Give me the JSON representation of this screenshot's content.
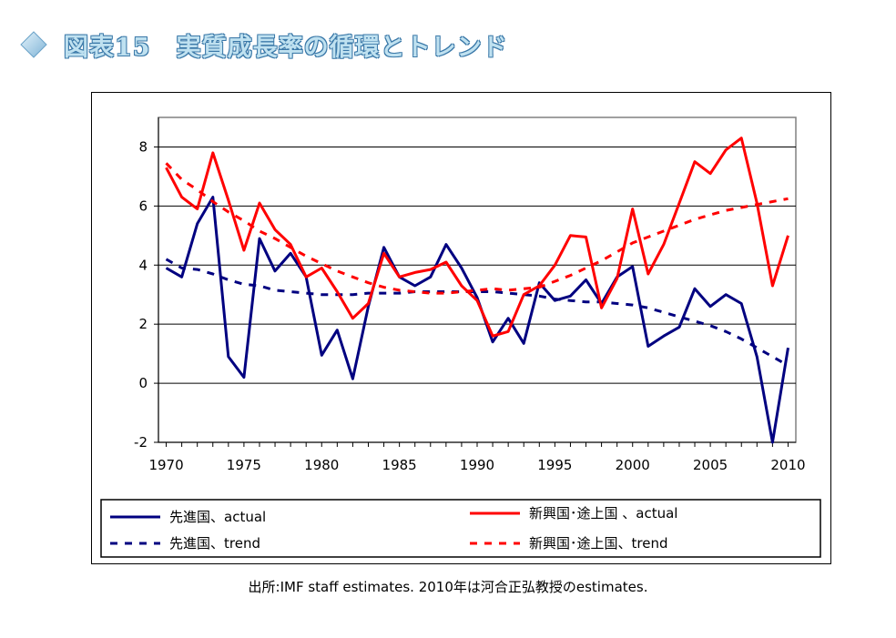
{
  "header": {
    "title": "図表15　実質成長率の循環とトレンド",
    "icon": "diamond-icon",
    "title_color": "#bfe1f0",
    "title_outline_color": "#3a78a8"
  },
  "source_note": "出所:IMF staff estimates. 2010年は河合正弘教授のestimates.",
  "chart_data": {
    "type": "line",
    "xlim": [
      1969.5,
      2010.5
    ],
    "ylim": [
      -2,
      9
    ],
    "yticks": [
      -2,
      0,
      2,
      4,
      6,
      8
    ],
    "ytick_labels": [
      "-2",
      "0",
      "2",
      "4",
      "6",
      "8"
    ],
    "xticks": [
      1970,
      1975,
      1980,
      1985,
      1990,
      1995,
      2000,
      2005,
      2010
    ],
    "xtick_labels": [
      "1970",
      "1975",
      "1980",
      "1985",
      "1990",
      "1995",
      "2000",
      "2005",
      "2010"
    ],
    "grid": "horizontal",
    "gridline_color": "#000000",
    "plot_background": "#ffffff",
    "legend_position": "bottom",
    "years": [
      1970,
      1971,
      1972,
      1973,
      1974,
      1975,
      1976,
      1977,
      1978,
      1979,
      1980,
      1981,
      1982,
      1983,
      1984,
      1985,
      1986,
      1987,
      1988,
      1989,
      1990,
      1991,
      1992,
      1993,
      1994,
      1995,
      1996,
      1997,
      1998,
      1999,
      2000,
      2001,
      2002,
      2003,
      2004,
      2005,
      2006,
      2007,
      2008,
      2009,
      2010
    ],
    "series": [
      {
        "name": "先進国、actual",
        "color": "#000080",
        "style": "solid",
        "values": [
          3.9,
          3.6,
          5.4,
          6.3,
          0.9,
          0.2,
          4.9,
          3.8,
          4.4,
          3.6,
          0.95,
          1.8,
          0.15,
          2.6,
          4.6,
          3.6,
          3.3,
          3.6,
          4.7,
          3.9,
          2.9,
          1.4,
          2.2,
          1.35,
          3.4,
          2.8,
          2.95,
          3.5,
          2.7,
          3.6,
          3.95,
          1.25,
          1.6,
          1.9,
          3.2,
          2.6,
          3.0,
          2.7,
          0.9,
          -2.0,
          1.2
        ]
      },
      {
        "name": "先進国、trend",
        "color": "#000080",
        "style": "dashed",
        "values": [
          4.2,
          3.9,
          3.85,
          3.7,
          3.5,
          3.35,
          3.3,
          3.15,
          3.1,
          3.05,
          3.0,
          3.0,
          3.0,
          3.05,
          3.05,
          3.05,
          3.1,
          3.1,
          3.1,
          3.1,
          3.1,
          3.1,
          3.05,
          3.0,
          2.95,
          2.85,
          2.8,
          2.75,
          2.75,
          2.7,
          2.65,
          2.55,
          2.4,
          2.25,
          2.1,
          1.95,
          1.75,
          1.5,
          1.2,
          0.9,
          0.6
        ]
      },
      {
        "name": "新興国･途上国 、actual",
        "color": "#ff0000",
        "style": "solid",
        "values": [
          7.3,
          6.3,
          5.9,
          7.8,
          6.2,
          4.5,
          6.1,
          5.2,
          4.7,
          3.6,
          3.9,
          3.1,
          2.2,
          2.7,
          4.4,
          3.6,
          3.75,
          3.85,
          4.1,
          3.3,
          2.8,
          1.6,
          1.75,
          3.0,
          3.3,
          4.0,
          5.0,
          4.95,
          2.55,
          3.55,
          5.9,
          3.7,
          4.7,
          6.1,
          7.5,
          7.1,
          7.9,
          8.3,
          6.1,
          3.3,
          5.0
        ]
      },
      {
        "name": "新興国･途上国、trend",
        "color": "#ff0000",
        "style": "dashed",
        "values": [
          7.45,
          6.9,
          6.55,
          6.15,
          5.8,
          5.5,
          5.15,
          4.9,
          4.6,
          4.3,
          4.05,
          3.8,
          3.6,
          3.4,
          3.25,
          3.15,
          3.1,
          3.05,
          3.05,
          3.1,
          3.15,
          3.2,
          3.15,
          3.2,
          3.25,
          3.45,
          3.65,
          3.9,
          4.15,
          4.45,
          4.75,
          4.95,
          5.15,
          5.35,
          5.55,
          5.7,
          5.85,
          5.95,
          6.05,
          6.15,
          6.25
        ]
      }
    ]
  }
}
